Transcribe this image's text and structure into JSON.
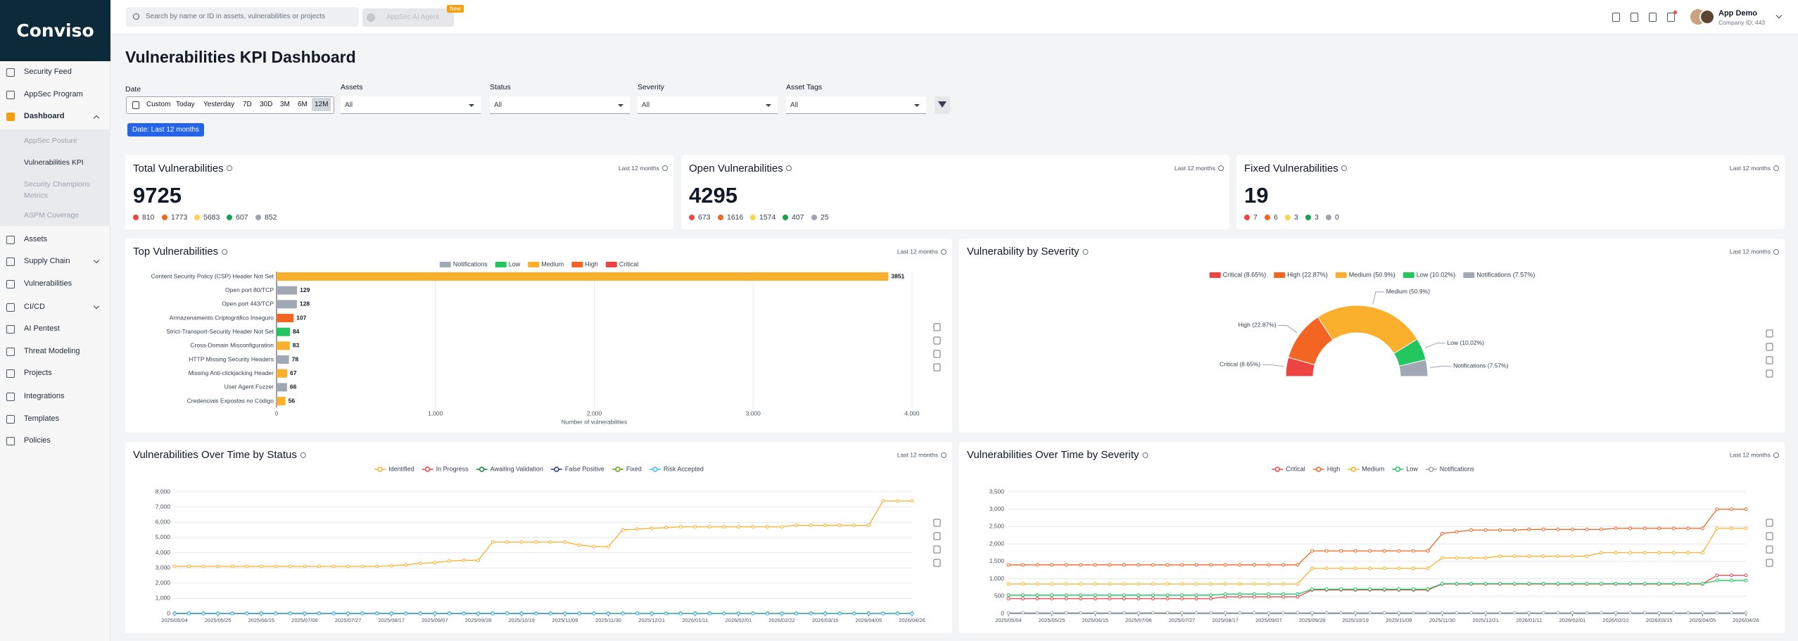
{
  "sidebar": {
    "logo": "Conviso",
    "nav": [
      "Security Feed",
      "AppSec Program",
      "Dashboard",
      "Assets",
      "Supply Chain",
      "Vulnerabilities",
      "CI/CD",
      "AI Pentest",
      "Threat Modeling",
      "Projects",
      "Integrations",
      "Templates",
      "Policies"
    ],
    "subnav": [
      "AppSec Posture",
      "Vulnerabilities KPI",
      "Security Champions Metrics",
      "ASPM Coverage"
    ]
  },
  "topbar": {
    "search_placeholder": "Search by name or ID in assets, vulnerabilities or projects",
    "ai_agent": "AppSec AI Agent",
    "badge": "New",
    "user_name": "App Demo",
    "company": "Company ID: 443"
  },
  "page": {
    "title": "Vulnerabilities KPI Dashboard",
    "date_label": "Date",
    "date_options": [
      "Custom",
      "Today",
      "Yesterday",
      "7D",
      "30D",
      "3M",
      "6M",
      "12M"
    ],
    "filters": [
      {
        "label": "Assets",
        "value": "All"
      },
      {
        "label": "Status",
        "value": "All"
      },
      {
        "label": "Severity",
        "value": "All"
      },
      {
        "label": "Asset Tags",
        "value": "All"
      }
    ],
    "chip": "Date: Last 12 months"
  },
  "kpi_colors": [
    "#ef4444",
    "#f26522",
    "#fcd34d",
    "#16a34a",
    "#9ca3af"
  ],
  "kpis": [
    {
      "title": "Total Vulnerabilities",
      "period": "Last 12 months",
      "total": 9725,
      "breakdown": [
        810,
        1773,
        5683,
        607,
        852
      ]
    },
    {
      "title": "Open Vulnerabilities",
      "period": "Last 12 months",
      "total": 4295,
      "breakdown": [
        673,
        1616,
        1574,
        407,
        25
      ]
    },
    {
      "title": "Fixed Vulnerabilities",
      "period": "Last 12 months",
      "total": 19,
      "breakdown": [
        7,
        6,
        3,
        3,
        0
      ]
    }
  ],
  "chart_data": [
    {
      "type": "bar",
      "title": "Top Vulnerabilities",
      "period": "Last 12 months",
      "categories": [
        "Content Security Policy (CSP) Header Not Set",
        "Open port 80/TCP",
        "Open port 443/TCP",
        "Armazenamento Criptográfico Inseguro",
        "Strict-Transport-Security Header Not Set",
        "Cross-Domain Misconfiguration",
        "HTTP Missing Security Headers",
        "Missing Anti-clickjacking Header",
        "User Agent Fuzzer",
        "Credenciais Expostas no Código"
      ],
      "values": [
        3851,
        129,
        128,
        107,
        84,
        83,
        78,
        67,
        66,
        56
      ],
      "colors": [
        "#fbb02d",
        "#a1a7b3",
        "#a1a7b3",
        "#f26522",
        "#22c55e",
        "#fbb02d",
        "#a1a7b3",
        "#fbb02d",
        "#a1a7b3",
        "#fbb02d"
      ],
      "legend": [
        {
          "name": "Notifications",
          "color": "#a1a7b3"
        },
        {
          "name": "Low",
          "color": "#22c55e"
        },
        {
          "name": "Medium",
          "color": "#fbb02d"
        },
        {
          "name": "High",
          "color": "#f26522"
        },
        {
          "name": "Critical",
          "color": "#ef4444"
        }
      ],
      "xlim": [
        0,
        4000
      ],
      "xticks": [
        0,
        {
          "value": 1000,
          "label": "1,000"
        },
        {
          "value": 2000,
          "label": "2,000"
        },
        {
          "value": 3000,
          "label": "3,000"
        },
        {
          "value": 4000,
          "label": "4,000"
        }
      ],
      "xlabel": "Number of vulnerabilities"
    },
    {
      "type": "half-donut",
      "title": "Vulnerability by Severity",
      "period": "Last 12 months",
      "categories": [
        "Critical (8.65%)",
        "High (22.87%)",
        "Medium (50.9%)",
        "Low (10.02%)",
        "Notifications (7.57%)"
      ],
      "values": [
        8.65,
        22.87,
        50.9,
        10.02,
        7.57
      ],
      "colors": [
        "#ef4444",
        "#f26522",
        "#fbb02d",
        "#22c55e",
        "#a1a7b3"
      ]
    },
    {
      "type": "line",
      "title": "Vulnerabilities Over Time by Status",
      "period": "Last 12 months",
      "categories": [
        "2025/05/04",
        null,
        null,
        "2025/05/25",
        null,
        null,
        "2025/06/15",
        null,
        null,
        "2025/07/06",
        null,
        null,
        "2025/07/27",
        null,
        null,
        "2025/08/17",
        null,
        null,
        "2025/09/07",
        null,
        null,
        "2025/09/28",
        null,
        null,
        "2025/10/19",
        null,
        null,
        "2025/11/09",
        null,
        null,
        "2025/11/30",
        null,
        null,
        "2025/12/21",
        null,
        null,
        "2026/01/11",
        null,
        null,
        "2026/02/01",
        null,
        null,
        "2026/02/22",
        null,
        null,
        "2026/03/15",
        null,
        null,
        "2026/04/05",
        null,
        null,
        "2026/04/26"
      ],
      "series": [
        {
          "name": "Identified",
          "color": "#fbb02d",
          "values": [
            3100,
            3100,
            3100,
            3100,
            3100,
            3100,
            3100,
            3100,
            3100,
            3100,
            3100,
            3100,
            3100,
            3100,
            3100,
            3150,
            3200,
            3300,
            3350,
            3450,
            3500,
            3500,
            4700,
            4700,
            4700,
            4700,
            4700,
            4700,
            4500,
            4400,
            4400,
            5500,
            5550,
            5600,
            5650,
            5700,
            5700,
            5700,
            5700,
            5700,
            5700,
            5700,
            5700,
            5800,
            5800,
            5800,
            5800,
            5800,
            5800,
            7400,
            7400,
            7400
          ]
        },
        {
          "name": "In Progress",
          "color": "#ef4444",
          "values": [
            20,
            20,
            20,
            20,
            20,
            20,
            20,
            20,
            20,
            20,
            20,
            20,
            20,
            20,
            20,
            20,
            20,
            20,
            20,
            20,
            20,
            20,
            20,
            20,
            20,
            20,
            20,
            20,
            20,
            20,
            20,
            20,
            20,
            20,
            20,
            20,
            20,
            20,
            20,
            20,
            20,
            20,
            20,
            20,
            20,
            20,
            20,
            20,
            20,
            20,
            20,
            20
          ]
        },
        {
          "name": "Awaiting Validation",
          "color": "#15803d",
          "values": [
            10,
            10,
            10,
            10,
            10,
            10,
            10,
            10,
            10,
            10,
            10,
            10,
            10,
            10,
            10,
            10,
            10,
            10,
            10,
            10,
            10,
            10,
            10,
            10,
            10,
            10,
            10,
            10,
            10,
            10,
            10,
            10,
            10,
            10,
            10,
            10,
            10,
            10,
            10,
            10,
            10,
            10,
            10,
            10,
            10,
            10,
            10,
            10,
            10,
            10,
            10,
            10
          ]
        },
        {
          "name": "False Positive",
          "color": "#1e3a8a",
          "values": [
            0,
            0,
            0,
            0,
            0,
            0,
            0,
            0,
            0,
            0,
            0,
            0,
            0,
            0,
            0,
            0,
            0,
            0,
            0,
            0,
            0,
            0,
            0,
            0,
            0,
            0,
            0,
            0,
            0,
            0,
            0,
            0,
            0,
            0,
            0,
            0,
            0,
            0,
            0,
            0,
            0,
            0,
            0,
            0,
            0,
            0,
            0,
            0,
            0,
            0,
            0,
            0
          ]
        },
        {
          "name": "Fixed",
          "color": "#65a30d",
          "values": [
            0,
            0,
            0,
            0,
            0,
            0,
            0,
            0,
            0,
            0,
            0,
            0,
            0,
            0,
            0,
            0,
            0,
            0,
            0,
            0,
            0,
            0,
            0,
            0,
            0,
            0,
            0,
            0,
            0,
            0,
            19,
            19,
            19,
            19,
            19,
            19,
            19,
            19,
            19,
            19,
            19,
            19,
            19,
            19,
            19,
            19,
            19,
            19,
            19,
            19,
            19,
            19
          ]
        },
        {
          "name": "Risk Accepted",
          "color": "#38bdf8",
          "values": [
            0,
            0,
            0,
            0,
            0,
            0,
            0,
            0,
            0,
            0,
            0,
            0,
            0,
            0,
            0,
            0,
            0,
            0,
            0,
            0,
            0,
            0,
            0,
            0,
            0,
            0,
            0,
            0,
            0,
            0,
            0,
            0,
            0,
            0,
            0,
            0,
            0,
            0,
            0,
            0,
            0,
            0,
            0,
            0,
            0,
            0,
            0,
            0,
            0,
            0,
            0,
            0
          ]
        }
      ],
      "ylim": [
        0,
        8000
      ],
      "yticks": [
        0,
        {
          "value": 1000,
          "label": "1,000"
        },
        {
          "value": 2000,
          "label": "2,000"
        },
        {
          "value": 3000,
          "label": "3,000"
        },
        {
          "value": 4000,
          "label": "4,000"
        },
        {
          "value": 5000,
          "label": "5,000"
        },
        {
          "value": 6000,
          "label": "6,000"
        },
        {
          "value": 7000,
          "label": "7,000"
        },
        {
          "value": 8000,
          "label": "8,000"
        }
      ],
      "grid": true
    },
    {
      "type": "line",
      "title": "Vulnerabilities Over Time by Severity",
      "period": "Last 12 months",
      "categories": [
        "2025/05/04",
        null,
        null,
        "2025/05/25",
        null,
        null,
        "2025/06/15",
        null,
        null,
        "2025/07/06",
        null,
        null,
        "2025/07/27",
        null,
        null,
        "2025/08/17",
        null,
        null,
        "2025/09/07",
        null,
        null,
        "2025/09/28",
        null,
        null,
        "2025/10/19",
        null,
        null,
        "2025/11/09",
        null,
        null,
        "2025/11/30",
        null,
        null,
        "2025/12/21",
        null,
        null,
        "2026/01/11",
        null,
        null,
        "2026/02/01",
        null,
        null,
        "2026/02/22",
        null,
        null,
        "2026/03/15",
        null,
        null,
        "2026/04/05",
        null,
        null,
        "2026/04/26"
      ],
      "series": [
        {
          "name": "Critical",
          "color": "#ef4444",
          "values": [
            430,
            430,
            430,
            430,
            430,
            430,
            430,
            430,
            430,
            430,
            430,
            430,
            430,
            430,
            430,
            480,
            480,
            480,
            480,
            480,
            480,
            680,
            680,
            680,
            680,
            680,
            680,
            680,
            680,
            680,
            850,
            850,
            850,
            850,
            850,
            850,
            850,
            850,
            850,
            850,
            850,
            850,
            850,
            850,
            850,
            850,
            850,
            850,
            850,
            1100,
            1100,
            1100
          ]
        },
        {
          "name": "High",
          "color": "#f26522",
          "values": [
            1400,
            1400,
            1400,
            1400,
            1400,
            1400,
            1400,
            1400,
            1400,
            1400,
            1400,
            1400,
            1400,
            1400,
            1400,
            1400,
            1400,
            1400,
            1400,
            1400,
            1400,
            1800,
            1800,
            1800,
            1800,
            1800,
            1800,
            1800,
            1800,
            1800,
            2300,
            2350,
            2400,
            2400,
            2400,
            2400,
            2420,
            2420,
            2420,
            2420,
            2420,
            2420,
            2450,
            2450,
            2450,
            2450,
            2450,
            2450,
            2450,
            3000,
            3000,
            3000
          ]
        },
        {
          "name": "Medium",
          "color": "#fbb02d",
          "values": [
            850,
            850,
            850,
            850,
            850,
            850,
            850,
            850,
            850,
            850,
            850,
            850,
            850,
            850,
            850,
            850,
            850,
            850,
            850,
            850,
            850,
            1300,
            1300,
            1300,
            1300,
            1300,
            1300,
            1300,
            1300,
            1300,
            1600,
            1600,
            1600,
            1600,
            1650,
            1650,
            1650,
            1650,
            1650,
            1650,
            1650,
            1750,
            1750,
            1750,
            1750,
            1750,
            1750,
            1750,
            1750,
            2450,
            2450,
            2450
          ]
        },
        {
          "name": "Low",
          "color": "#22c55e",
          "values": [
            530,
            530,
            530,
            530,
            530,
            530,
            530,
            530,
            530,
            530,
            530,
            530,
            530,
            530,
            530,
            560,
            560,
            560,
            560,
            560,
            560,
            700,
            700,
            700,
            700,
            700,
            700,
            700,
            700,
            700,
            860,
            860,
            860,
            860,
            860,
            860,
            860,
            860,
            860,
            860,
            860,
            860,
            860,
            860,
            860,
            860,
            860,
            860,
            860,
            950,
            950,
            950
          ]
        },
        {
          "name": "Notifications",
          "color": "#9ca3af",
          "values": [
            20,
            20,
            20,
            20,
            20,
            20,
            20,
            20,
            20,
            20,
            20,
            20,
            20,
            20,
            20,
            20,
            20,
            20,
            20,
            20,
            20,
            20,
            20,
            20,
            20,
            20,
            20,
            20,
            20,
            20,
            20,
            20,
            20,
            20,
            20,
            20,
            20,
            20,
            20,
            20,
            20,
            20,
            20,
            20,
            20,
            20,
            20,
            20,
            20,
            20,
            20,
            20
          ]
        }
      ],
      "ylim": [
        0,
        3500
      ],
      "yticks": [
        0,
        500,
        {
          "value": 1000,
          "label": "1,000"
        },
        {
          "value": 1500,
          "label": "1,500"
        },
        {
          "value": 2000,
          "label": "2,000"
        },
        {
          "value": 2500,
          "label": "2,500"
        },
        {
          "value": 3000,
          "label": "3,000"
        },
        {
          "value": 3500,
          "label": "3,500"
        }
      ],
      "grid": true
    }
  ]
}
